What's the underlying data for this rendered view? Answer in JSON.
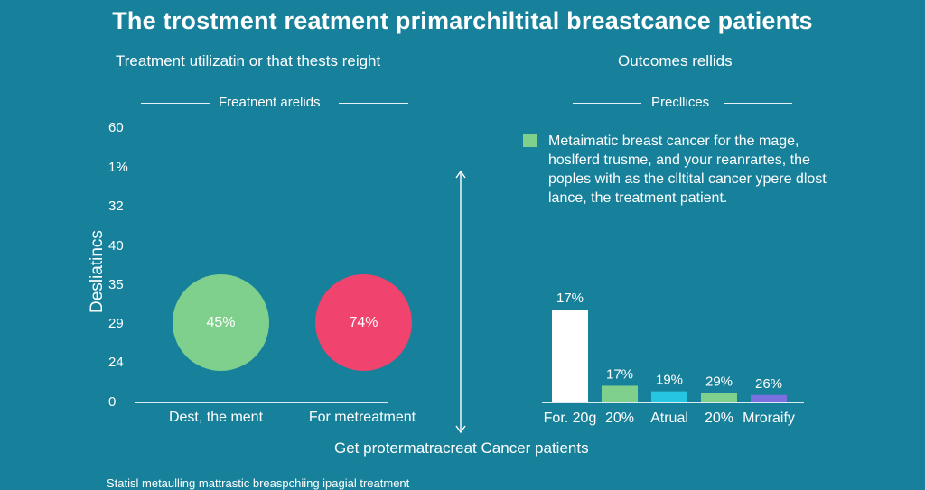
{
  "title": "The trostment reatment primarchiltital breastcance patients",
  "left_panel": {
    "subtitle": "Treatment utilizatin or that thests reight",
    "legend_label": "Freatnent arelids",
    "y_axis_label": "Desliatincs",
    "y_ticks": [
      "60",
      "1%",
      "32",
      "40",
      "35",
      "29",
      "24",
      "0"
    ],
    "categories": [
      {
        "label": "Dest, the ment",
        "value_label": "45%",
        "color": "#7fd08d"
      },
      {
        "label": "For metreatment",
        "value_label": "74%",
        "color": "#f0436d"
      }
    ]
  },
  "right_panel": {
    "subtitle": "Outcomes rellids",
    "legend_label": "Precllices",
    "legend_swatch_color": "#7fd08d",
    "legend_text": "Metaimatic breast cancer for the mage, hoslferd trusme, and your reanrartes, the poples with as the clltital cancer ypere dlost lance, the treatment patient."
  },
  "bottom_label": "Get protermatracreat Cancer patients",
  "footnote": "Statisl metaulling mattrastic breaspchiing ipagial treatment",
  "chart_data": [
    {
      "type": "scatter",
      "title": "Treatment utilizatin or that thests reight",
      "ylabel": "Desliatincs",
      "y_tick_labels": [
        "60",
        "1%",
        "32",
        "40",
        "35",
        "29",
        "24",
        "0"
      ],
      "categories": [
        "Dest, the ment",
        "For metreatment"
      ],
      "values": [
        45,
        74
      ],
      "value_labels": [
        "45%",
        "74%"
      ],
      "colors": [
        "#7fd08d",
        "#f0436d"
      ]
    },
    {
      "type": "bar",
      "title": "Outcomes rellids",
      "categories": [
        "For. 20g",
        "20%",
        "Atrual",
        "20%",
        "Mroraify"
      ],
      "values": [
        17,
        17,
        19,
        29,
        26
      ],
      "value_labels": [
        "17%",
        "17%",
        "19%",
        "29%",
        "26%"
      ],
      "colors": [
        "#ffffff",
        "#7fd08d",
        "#26c6e0",
        "#7fd08d",
        "#7b6fe0"
      ]
    }
  ]
}
